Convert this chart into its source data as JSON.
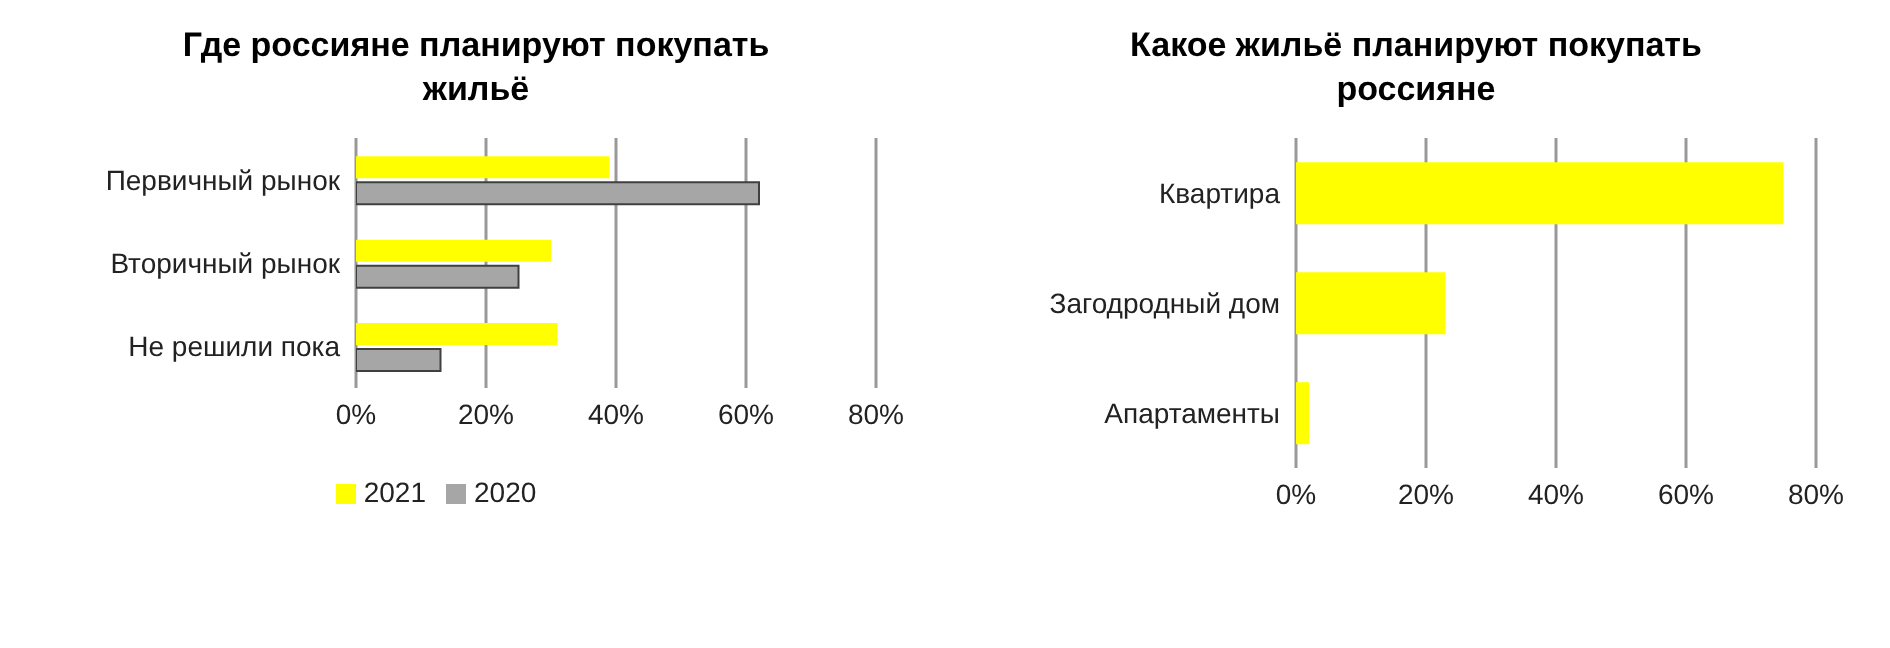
{
  "chart_data": [
    {
      "type": "bar",
      "orientation": "horizontal",
      "title": "Где россияне планируют покупать жильё",
      "categories": [
        "Первичный рынок",
        "Вторичный рынок",
        "Не решили пока"
      ],
      "series": [
        {
          "name": "2021",
          "color": "#ffff00",
          "values": [
            39,
            30,
            31
          ]
        },
        {
          "name": "2020",
          "color": "#a6a6a6",
          "values": [
            62,
            25,
            13
          ]
        }
      ],
      "xlim": [
        0,
        80
      ],
      "xticks": [
        {
          "value": 0,
          "label": "0%"
        },
        {
          "value": 20,
          "label": "20%"
        },
        {
          "value": 40,
          "label": "40%"
        },
        {
          "value": 60,
          "label": "60%"
        },
        {
          "value": 80,
          "label": "80%"
        }
      ],
      "grid": "x",
      "legend": "bottom"
    },
    {
      "type": "bar",
      "orientation": "horizontal",
      "title": "Какое жильё планируют покупать россияне",
      "categories": [
        "Квартира",
        "Загодродный дом",
        "Апартаменты"
      ],
      "series": [
        {
          "color": "#ffff00",
          "values": [
            75,
            23,
            2
          ]
        }
      ],
      "xlim": [
        0,
        80
      ],
      "xticks": [
        {
          "value": 0,
          "label": "0%"
        },
        {
          "value": 20,
          "label": "20%"
        },
        {
          "value": 40,
          "label": "40%"
        },
        {
          "value": 60,
          "label": "60%"
        },
        {
          "value": 80,
          "label": "80%"
        }
      ],
      "grid": "x"
    }
  ]
}
